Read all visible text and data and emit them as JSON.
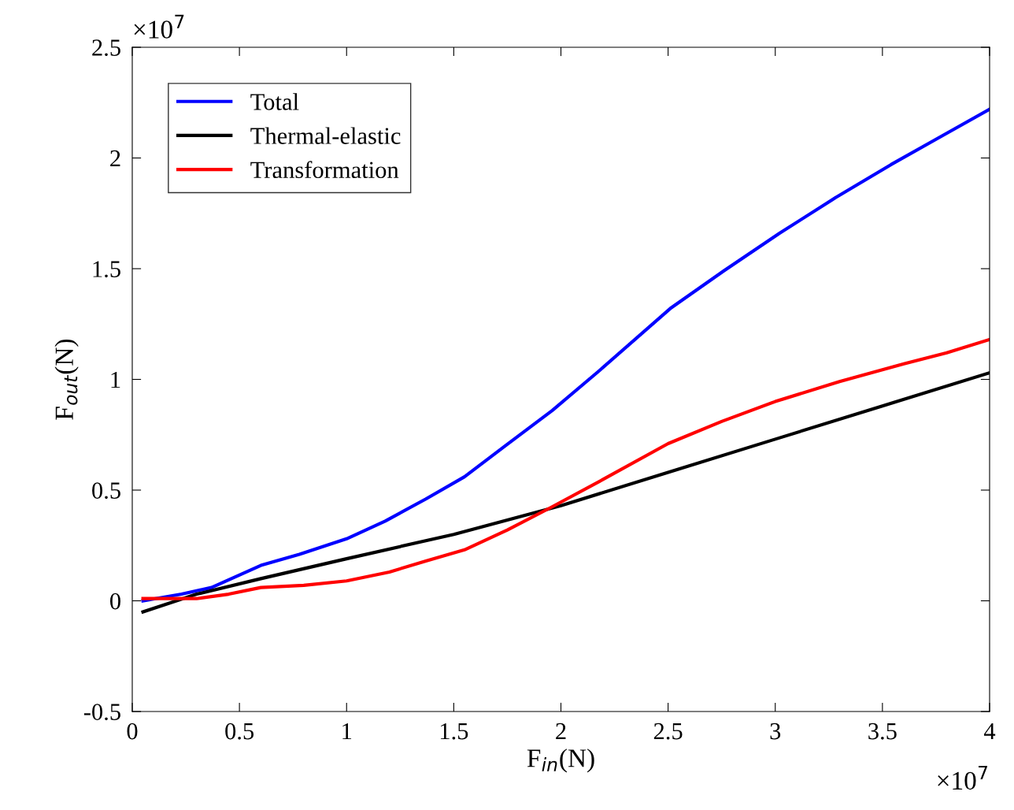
{
  "chart_data": {
    "type": "line",
    "xlabel": "F$_{in}$(N)",
    "ylabel": "F$_{out}$(N)",
    "annotations": [
      "×10$^{7}$",
      "×10$^{7}$"
    ],
    "xlim": [
      0,
      4
    ],
    "xticks": [
      0,
      0.5,
      1,
      1.5,
      2,
      2.5,
      3,
      3.5,
      4
    ],
    "ylim": [
      -0.5,
      2.5
    ],
    "yticks": [
      -0.5,
      0,
      0.5,
      1,
      1.5,
      2,
      2.5
    ],
    "grid": false,
    "legend": "top left",
    "line_style": "solid",
    "marker": "none",
    "series": [
      {
        "name": "Total",
        "color": "#0000ff",
        "x": [
          0.05,
          0.23,
          0.37,
          0.6,
          0.78,
          1.0,
          1.18,
          1.37,
          1.55,
          1.74,
          1.96,
          2.18,
          2.51,
          2.76,
          3.02,
          3.28,
          3.54,
          3.76,
          4.0
        ],
        "values": [
          0.0,
          0.03,
          0.06,
          0.16,
          0.21,
          0.28,
          0.36,
          0.46,
          0.56,
          0.7,
          0.86,
          1.04,
          1.32,
          1.49,
          1.66,
          1.82,
          1.97,
          2.09,
          2.22
        ]
      },
      {
        "name": "Thermal-elastic",
        "color": "#000000",
        "x": [
          0.05,
          0.3,
          0.6,
          1.0,
          1.5,
          2.0,
          2.5,
          3.0,
          3.5,
          4.0
        ],
        "values": [
          -0.05,
          0.03,
          0.1,
          0.19,
          0.3,
          0.43,
          0.58,
          0.73,
          0.88,
          1.03
        ]
      },
      {
        "name": "Transformation",
        "color": "#ff0000",
        "x": [
          0.05,
          0.3,
          0.45,
          0.6,
          0.8,
          1.0,
          1.2,
          1.37,
          1.55,
          1.75,
          1.95,
          2.2,
          2.5,
          2.75,
          3.0,
          3.3,
          3.6,
          3.8,
          4.0
        ],
        "values": [
          0.01,
          0.01,
          0.03,
          0.06,
          0.07,
          0.09,
          0.13,
          0.18,
          0.23,
          0.32,
          0.42,
          0.55,
          0.71,
          0.81,
          0.9,
          0.99,
          1.07,
          1.12,
          1.18
        ]
      }
    ]
  }
}
